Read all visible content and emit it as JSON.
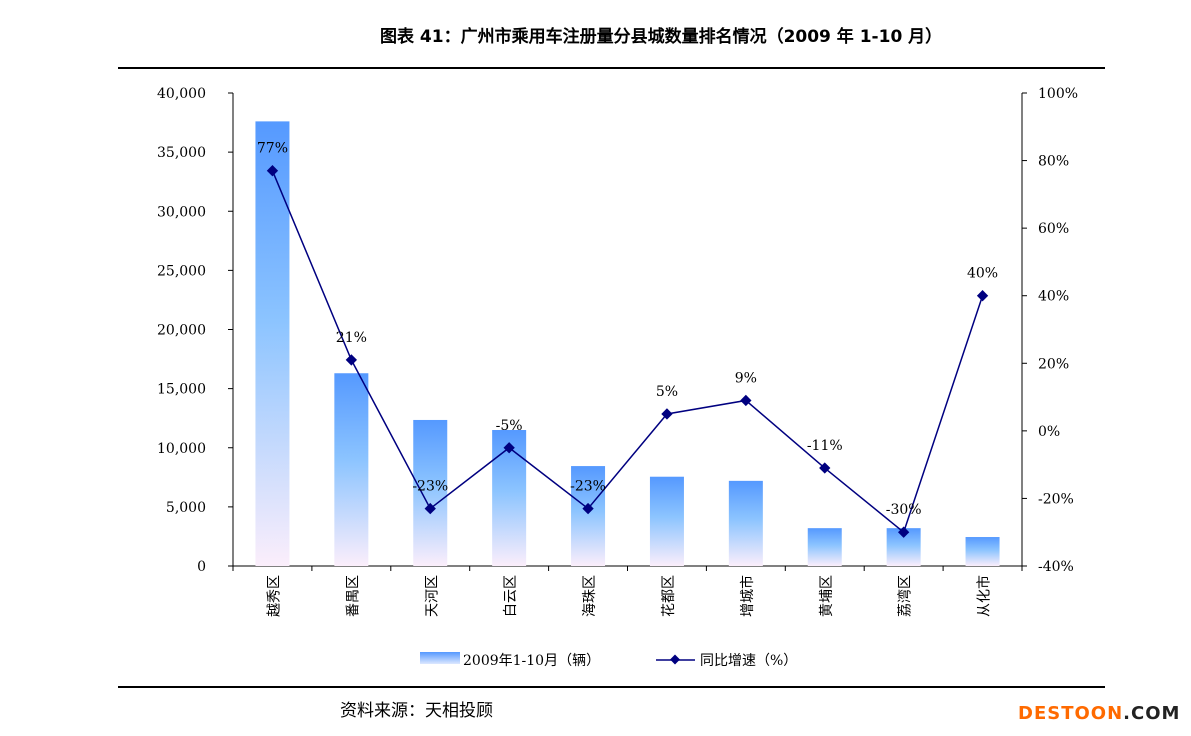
{
  "title": "图表 41：广州市乘用车注册量分县城数量排名情况（2009 年 1-10 月）",
  "source": "资料来源：天相投顾",
  "watermark": {
    "part1": "DESTOON",
    "part2": ".COM"
  },
  "chart_data": {
    "type": "bar+line",
    "title": "图表 41：广州市乘用车注册量分县城数量排名情况（2009 年 1-10 月）",
    "categories": [
      "越秀区",
      "番禺区",
      "天河区",
      "白云区",
      "海珠区",
      "花都区",
      "增城市",
      "黄埔区",
      "荔湾区",
      "从化市"
    ],
    "series": [
      {
        "name": "2009年1-10月（辆）",
        "type": "bar",
        "axis": "left",
        "values": [
          37600,
          16300,
          12350,
          11500,
          8450,
          7550,
          7200,
          3200,
          3200,
          2450
        ]
      },
      {
        "name": "同比增速（%）",
        "type": "line",
        "axis": "right",
        "values": [
          77,
          21,
          -23,
          -5,
          -23,
          5,
          9,
          -11,
          -30,
          40
        ],
        "labels": [
          "77%",
          "21%",
          "-23%",
          "-5%",
          "-23%",
          "5%",
          "9%",
          "-11%",
          "-30%",
          "40%"
        ]
      }
    ],
    "ylim_left": [
      0,
      40000
    ],
    "yticks_left": [
      "0",
      "5,000",
      "10,000",
      "15,000",
      "20,000",
      "25,000",
      "30,000",
      "35,000",
      "40,000"
    ],
    "ylim_right": [
      -40,
      100
    ],
    "yticks_right": [
      "-40%",
      "-20%",
      "0%",
      "20%",
      "40%",
      "60%",
      "80%",
      "100%"
    ],
    "legend_position": "bottom",
    "grid": false,
    "colors": {
      "bar_top": "#5599ff",
      "bar_bottom": "#fbeefb",
      "line": "#000080"
    }
  }
}
